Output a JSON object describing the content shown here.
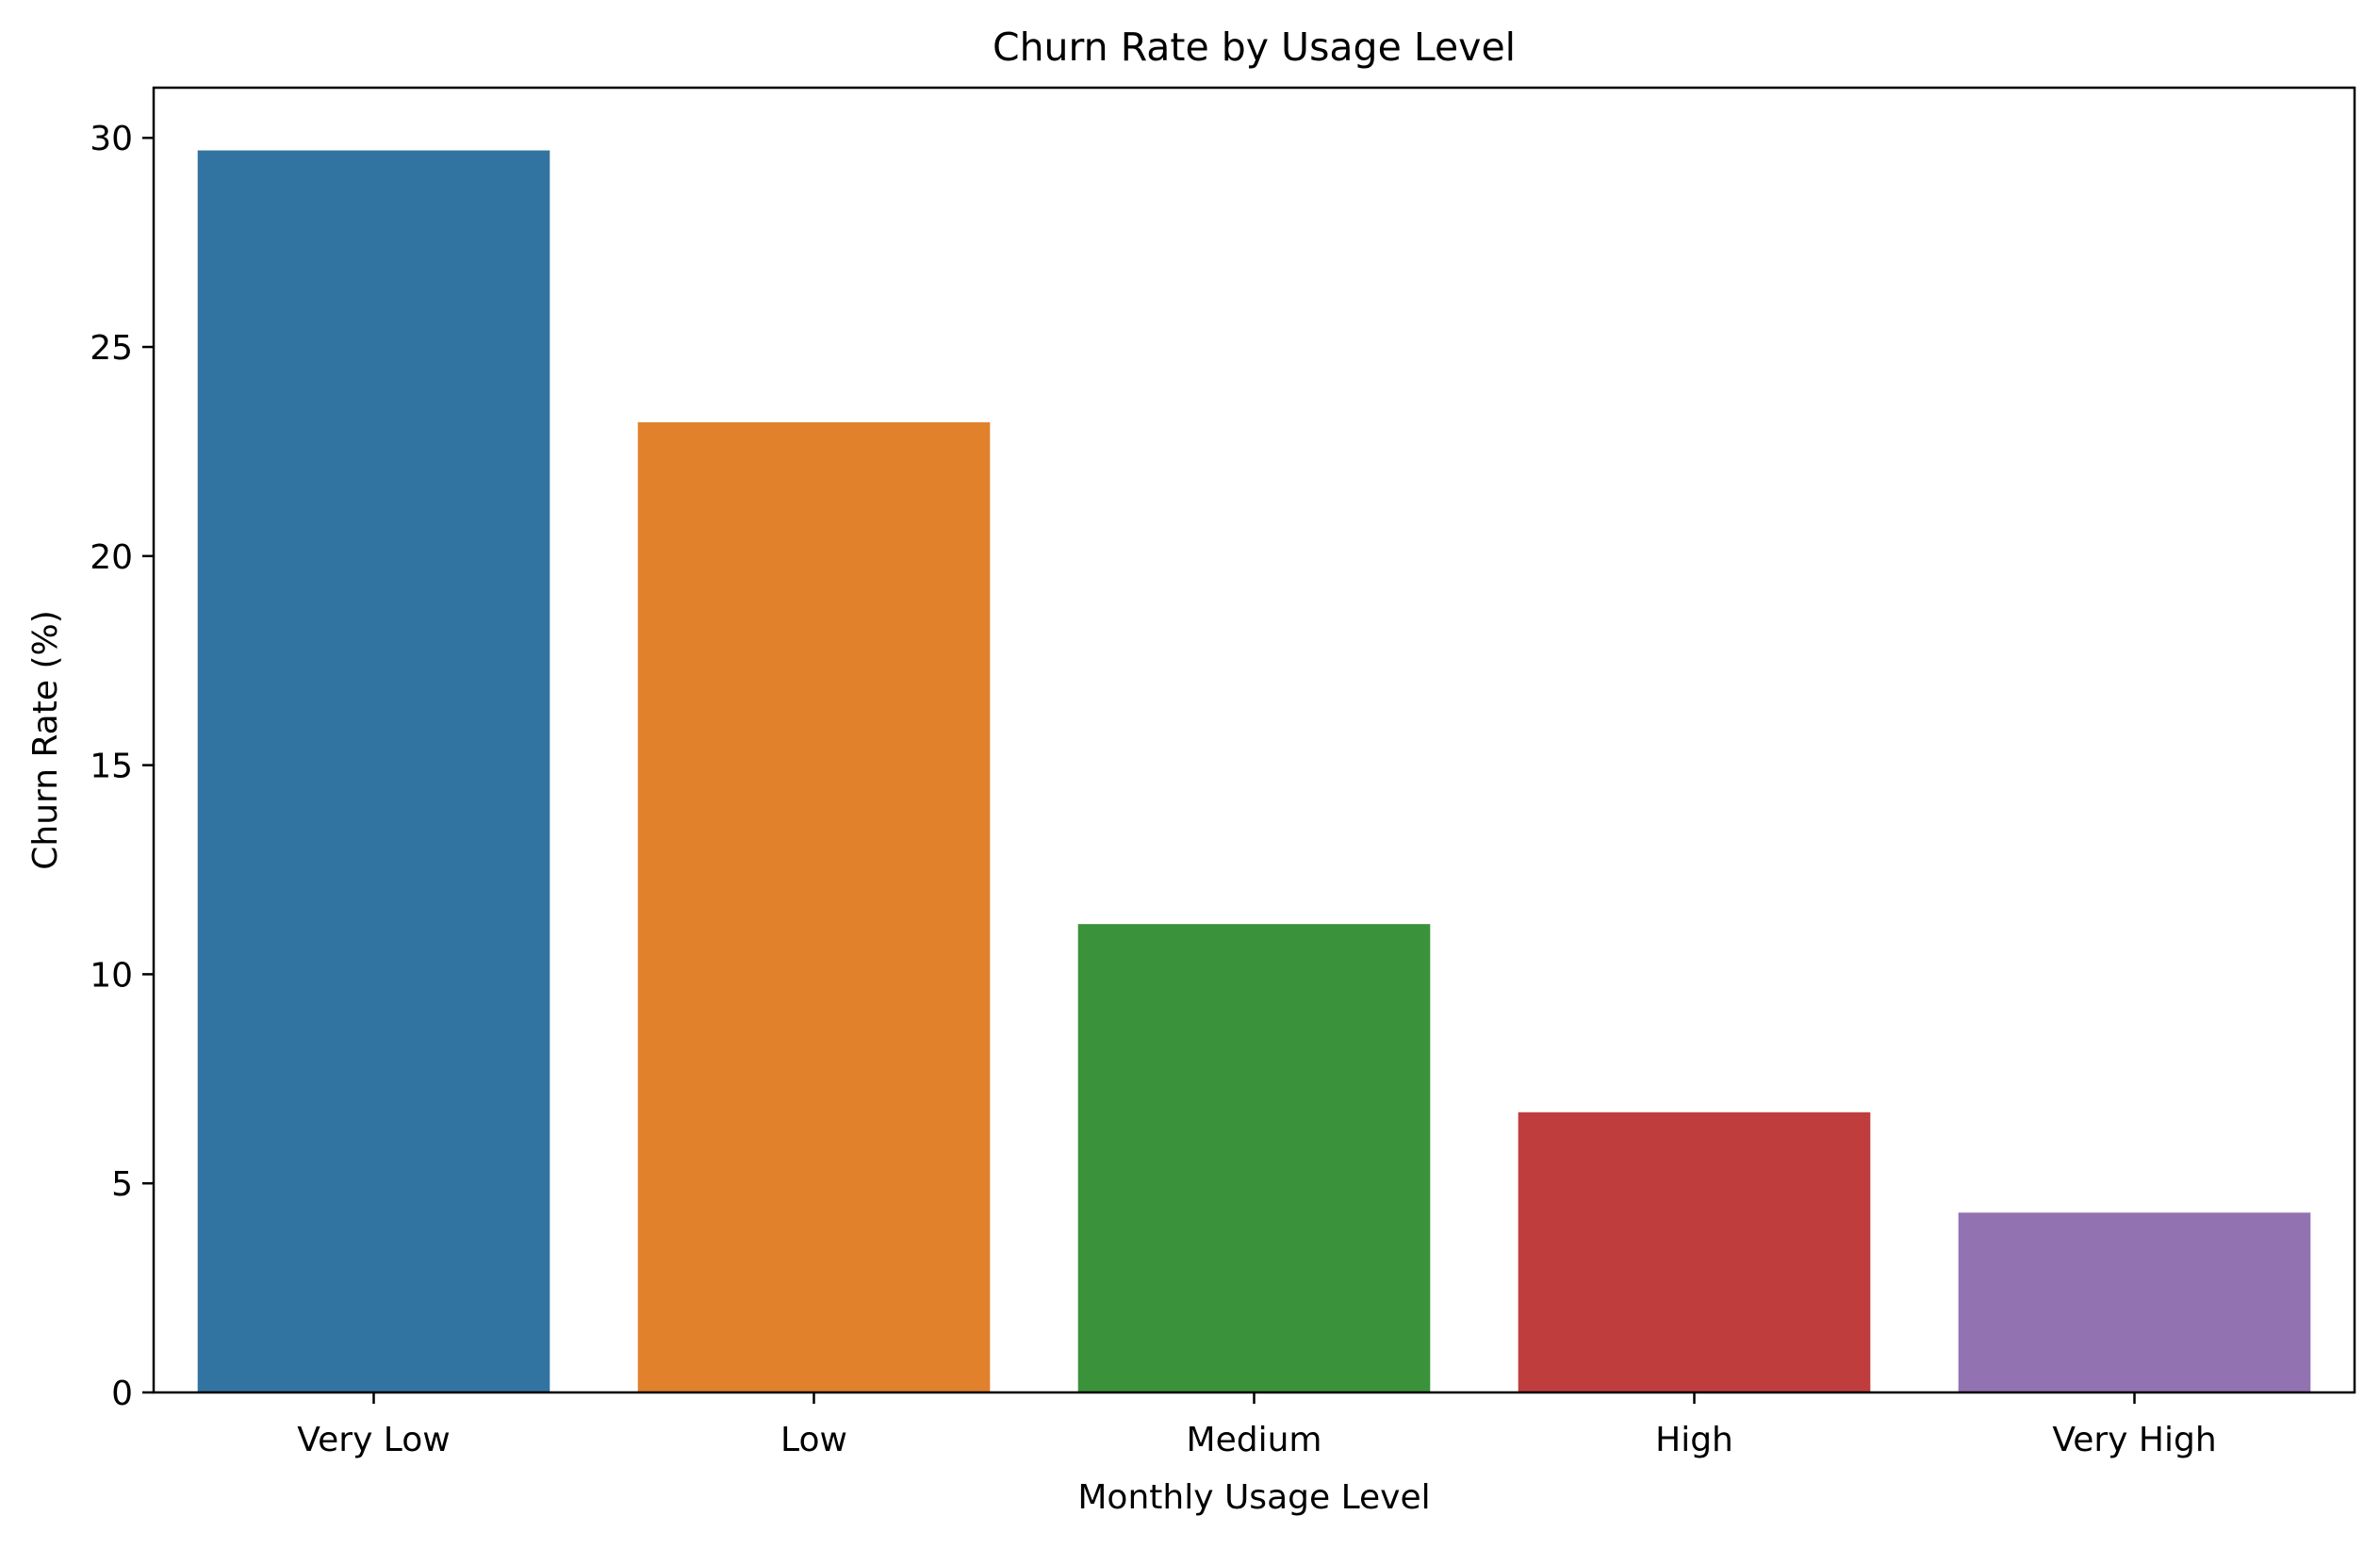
{
  "chart_data": {
    "type": "bar",
    "title": "Churn Rate by Usage Level",
    "xlabel": "Monthly Usage Level",
    "ylabel": "Churn Rate (%)",
    "categories": [
      "Very Low",
      "Low",
      "Medium",
      "High",
      "Very High"
    ],
    "values": [
      29.7,
      23.2,
      11.2,
      6.7,
      4.3
    ],
    "colors": [
      "#3274a1",
      "#e1812c",
      "#3a923a",
      "#c03d3e",
      "#9372b2"
    ],
    "ylim": [
      0,
      31.2
    ],
    "yticks": [
      0,
      5,
      10,
      15,
      20,
      25,
      30
    ],
    "grid": false,
    "legend": "none"
  }
}
